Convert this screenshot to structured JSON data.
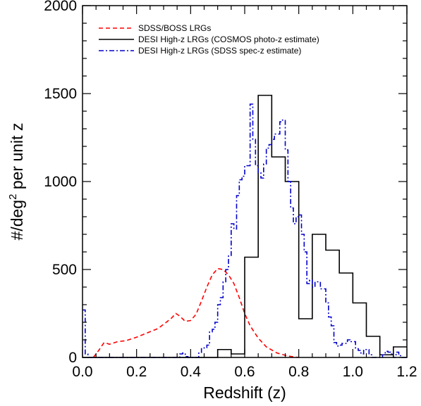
{
  "chart_data": {
    "type": "line",
    "xlabel": "Redshift (z)",
    "ylabel": "#/deg² per unit z",
    "ylabel_parts": {
      "pre": "#/deg",
      "sup": "2",
      "post": " per unit z"
    },
    "xlim": [
      0.0,
      1.2
    ],
    "ylim": [
      0,
      2000
    ],
    "x_ticks": [
      0.0,
      0.2,
      0.4,
      0.6,
      0.8,
      1.0,
      1.2
    ],
    "x_tick_labels": [
      "0.0",
      "0.2",
      "0.4",
      "0.6",
      "0.8",
      "1.0",
      "1.2"
    ],
    "y_ticks": [
      0,
      500,
      1000,
      1500,
      2000
    ],
    "y_tick_labels": [
      "0",
      "500",
      "1000",
      "1500",
      "2000"
    ],
    "grid": false,
    "legend_position": "top-left",
    "series": [
      {
        "name": "SDSS/BOSS LRGs",
        "style": "dashed",
        "color": "#ff0000",
        "points": [
          [
            0.04,
            0
          ],
          [
            0.06,
            40
          ],
          [
            0.08,
            85
          ],
          [
            0.1,
            75
          ],
          [
            0.13,
            90
          ],
          [
            0.16,
            95
          ],
          [
            0.2,
            115
          ],
          [
            0.24,
            140
          ],
          [
            0.28,
            165
          ],
          [
            0.31,
            200
          ],
          [
            0.33,
            225
          ],
          [
            0.345,
            250
          ],
          [
            0.36,
            235
          ],
          [
            0.38,
            205
          ],
          [
            0.4,
            210
          ],
          [
            0.42,
            245
          ],
          [
            0.44,
            320
          ],
          [
            0.46,
            400
          ],
          [
            0.48,
            470
          ],
          [
            0.5,
            505
          ],
          [
            0.52,
            500
          ],
          [
            0.54,
            470
          ],
          [
            0.56,
            420
          ],
          [
            0.58,
            340
          ],
          [
            0.6,
            250
          ],
          [
            0.62,
            180
          ],
          [
            0.65,
            110
          ],
          [
            0.68,
            60
          ],
          [
            0.72,
            25
          ],
          [
            0.76,
            8
          ],
          [
            0.8,
            0
          ]
        ]
      },
      {
        "name": "DESI High-z LRGs (COSMOS photo-z estimate)",
        "style": "solid",
        "color": "#000000",
        "step": true,
        "bin_width": 0.05,
        "bins": [
          [
            0.0,
            0
          ],
          [
            0.05,
            0
          ],
          [
            0.1,
            0
          ],
          [
            0.15,
            0
          ],
          [
            0.2,
            0
          ],
          [
            0.25,
            0
          ],
          [
            0.3,
            0
          ],
          [
            0.35,
            0
          ],
          [
            0.4,
            0
          ],
          [
            0.45,
            0
          ],
          [
            0.5,
            45
          ],
          [
            0.55,
            20
          ],
          [
            0.6,
            570
          ],
          [
            0.65,
            1490
          ],
          [
            0.7,
            1140
          ],
          [
            0.75,
            1000
          ],
          [
            0.8,
            220
          ],
          [
            0.85,
            700
          ],
          [
            0.9,
            610
          ],
          [
            0.95,
            480
          ],
          [
            1.0,
            310
          ],
          [
            1.05,
            120
          ],
          [
            1.1,
            15
          ],
          [
            1.15,
            60
          ]
        ]
      },
      {
        "name": "DESI High-z LRGs (SDSS spec-z estimate)",
        "style": "dashdot",
        "color": "#0000cc",
        "step": true,
        "bin_width": 0.01,
        "bins": [
          [
            0.0,
            270
          ],
          [
            0.01,
            20
          ],
          [
            0.02,
            0
          ],
          [
            0.03,
            0
          ],
          [
            0.04,
            0
          ],
          [
            0.05,
            0
          ],
          [
            0.06,
            0
          ],
          [
            0.07,
            0
          ],
          [
            0.08,
            0
          ],
          [
            0.09,
            0
          ],
          [
            0.1,
            0
          ],
          [
            0.11,
            0
          ],
          [
            0.12,
            0
          ],
          [
            0.13,
            0
          ],
          [
            0.14,
            0
          ],
          [
            0.15,
            0
          ],
          [
            0.16,
            0
          ],
          [
            0.17,
            0
          ],
          [
            0.18,
            0
          ],
          [
            0.19,
            0
          ],
          [
            0.2,
            0
          ],
          [
            0.21,
            0
          ],
          [
            0.22,
            0
          ],
          [
            0.23,
            0
          ],
          [
            0.24,
            0
          ],
          [
            0.25,
            0
          ],
          [
            0.26,
            0
          ],
          [
            0.27,
            0
          ],
          [
            0.28,
            0
          ],
          [
            0.29,
            0
          ],
          [
            0.3,
            0
          ],
          [
            0.31,
            0
          ],
          [
            0.32,
            0
          ],
          [
            0.33,
            0
          ],
          [
            0.34,
            0
          ],
          [
            0.35,
            0
          ],
          [
            0.36,
            20
          ],
          [
            0.37,
            25
          ],
          [
            0.38,
            5
          ],
          [
            0.39,
            0
          ],
          [
            0.4,
            0
          ],
          [
            0.41,
            0
          ],
          [
            0.42,
            0
          ],
          [
            0.43,
            25
          ],
          [
            0.44,
            50
          ],
          [
            0.45,
            55
          ],
          [
            0.46,
            70
          ],
          [
            0.47,
            145
          ],
          [
            0.48,
            160
          ],
          [
            0.49,
            200
          ],
          [
            0.5,
            300
          ],
          [
            0.51,
            340
          ],
          [
            0.52,
            430
          ],
          [
            0.53,
            500
          ],
          [
            0.54,
            580
          ],
          [
            0.55,
            760
          ],
          [
            0.56,
            730
          ],
          [
            0.57,
            920
          ],
          [
            0.58,
            1010
          ],
          [
            0.59,
            1030
          ],
          [
            0.6,
            1090
          ],
          [
            0.61,
            1090
          ],
          [
            0.62,
            1440
          ],
          [
            0.63,
            1240
          ],
          [
            0.64,
            1090
          ],
          [
            0.65,
            1050
          ],
          [
            0.66,
            1020
          ],
          [
            0.67,
            1100
          ],
          [
            0.68,
            1190
          ],
          [
            0.69,
            1210
          ],
          [
            0.7,
            1240
          ],
          [
            0.71,
            1270
          ],
          [
            0.72,
            1270
          ],
          [
            0.73,
            1340
          ],
          [
            0.74,
            1350
          ],
          [
            0.75,
            1180
          ],
          [
            0.76,
            1000
          ],
          [
            0.77,
            850
          ],
          [
            0.78,
            760
          ],
          [
            0.79,
            800
          ],
          [
            0.8,
            810
          ],
          [
            0.81,
            700
          ],
          [
            0.82,
            600
          ],
          [
            0.83,
            420
          ],
          [
            0.84,
            440
          ],
          [
            0.85,
            400
          ],
          [
            0.86,
            430
          ],
          [
            0.87,
            430
          ],
          [
            0.88,
            390
          ],
          [
            0.89,
            390
          ],
          [
            0.9,
            310
          ],
          [
            0.91,
            230
          ],
          [
            0.92,
            180
          ],
          [
            0.93,
            85
          ],
          [
            0.94,
            65
          ],
          [
            0.95,
            70
          ],
          [
            0.96,
            80
          ],
          [
            0.97,
            80
          ],
          [
            0.98,
            100
          ],
          [
            0.99,
            90
          ],
          [
            1.0,
            90
          ],
          [
            1.01,
            50
          ],
          [
            1.02,
            40
          ],
          [
            1.03,
            20
          ],
          [
            1.04,
            45
          ],
          [
            1.05,
            45
          ],
          [
            1.06,
            15
          ],
          [
            1.07,
            0
          ],
          [
            1.08,
            0
          ],
          [
            1.09,
            0
          ],
          [
            1.1,
            0
          ],
          [
            1.11,
            15
          ],
          [
            1.12,
            35
          ],
          [
            1.13,
            30
          ],
          [
            1.14,
            20
          ],
          [
            1.15,
            0
          ],
          [
            1.16,
            30
          ],
          [
            1.17,
            10
          ],
          [
            1.18,
            0
          ],
          [
            1.19,
            0
          ]
        ]
      }
    ]
  }
}
